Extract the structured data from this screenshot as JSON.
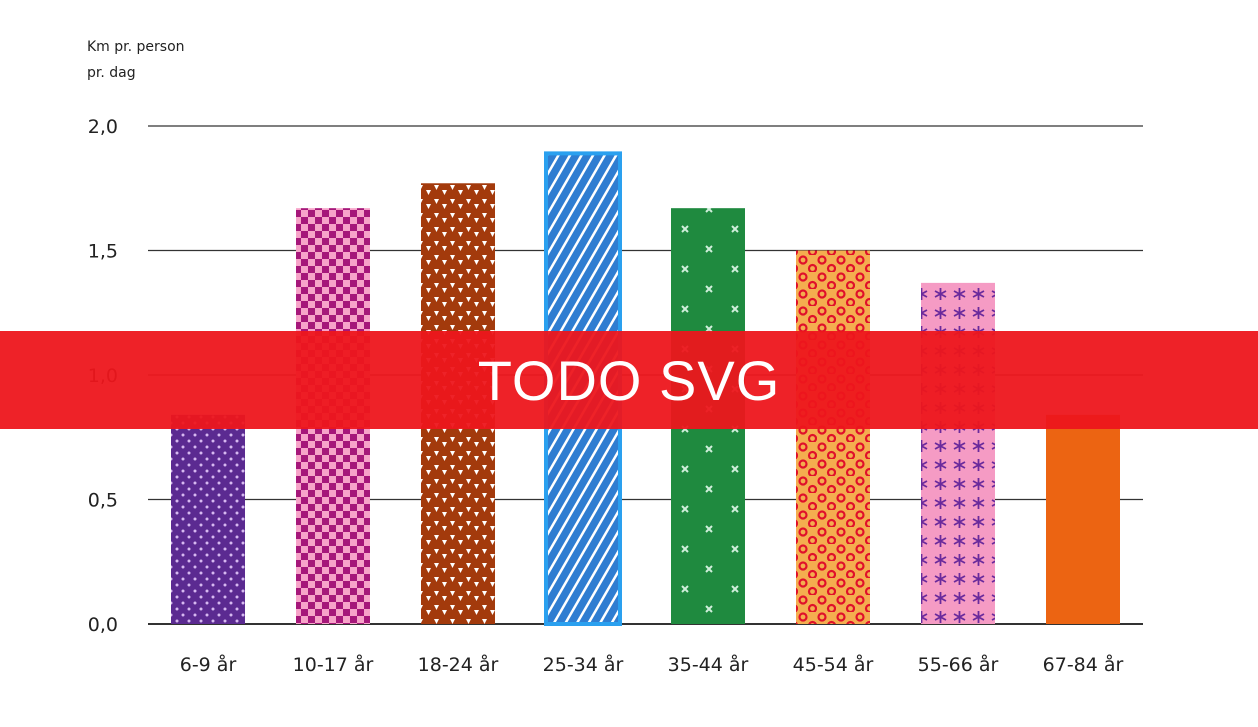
{
  "banner": {
    "text": "TODO SVG"
  },
  "colors": {
    "grid": "#333333",
    "bars": [
      "#5b2a91",
      "#f7a3c9",
      "#a33a0c",
      "#2f7dd1",
      "#1f8a3f",
      "#f4ad4f",
      "#f59bc4",
      "#ec6412"
    ],
    "pattern_marks": [
      "#d6b8f0",
      "#a6177a",
      "#ffffff",
      "#ffffff",
      "#cfeeda",
      "#e0102a",
      "#6a2a9c",
      "#ec6412"
    ],
    "highlight_border": "#2aa0ef"
  },
  "chart_data": {
    "type": "bar",
    "ylabel_lines": [
      "Km pr. person",
      "pr. dag"
    ],
    "categories": [
      "6-9 år",
      "10-17 år",
      "18-24 år",
      "25-34 år",
      "35-44 år",
      "45-54 år",
      "55-66 år",
      "67-84 år"
    ],
    "values": [
      0.84,
      1.67,
      1.77,
      1.89,
      1.67,
      1.5,
      1.37,
      0.84
    ],
    "ylim": [
      0,
      2.0
    ],
    "yticks": [
      "0,0",
      "0,5",
      "1,0",
      "1,5",
      "2,0"
    ],
    "grid": true,
    "patterns": [
      "dots",
      "checker",
      "triangles",
      "diagonal-stripes",
      "crosses",
      "rings",
      "asterisks",
      "solid"
    ]
  }
}
